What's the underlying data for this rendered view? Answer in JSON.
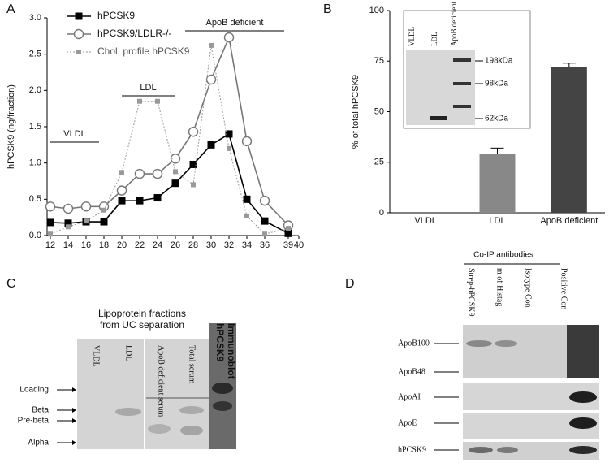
{
  "chart_data": [
    {
      "type": "line",
      "panel": "A",
      "ylabel": "hPCSK9 (ng/fraction)",
      "categories": [
        "12",
        "14",
        "16",
        "18",
        "20",
        "22",
        "24",
        "26",
        "28",
        "30",
        "32",
        "34",
        "36",
        "39",
        "40"
      ],
      "series": [
        {
          "name": "hPCSK9",
          "color": "#000000",
          "marker": "square",
          "values": [
            0.18,
            0.17,
            0.19,
            0.19,
            0.48,
            0.48,
            0.52,
            0.72,
            0.98,
            1.25,
            1.4,
            0.5,
            0.2,
            0.03,
            null
          ]
        },
        {
          "name": "hPCSK9/LDLR-/-",
          "color": "#777777",
          "marker": "circle",
          "values": [
            0.4,
            0.37,
            0.4,
            0.4,
            0.62,
            0.85,
            0.85,
            1.06,
            1.43,
            2.15,
            2.73,
            1.3,
            0.48,
            0.14,
            null
          ]
        },
        {
          "name": "Chol. profile hPCSK9",
          "color": "#999999",
          "marker": "small-square",
          "dashed": true,
          "values": [
            0.02,
            0.12,
            0.2,
            0.35,
            0.87,
            1.85,
            1.85,
            0.88,
            0.7,
            2.62,
            1.2,
            0.27,
            0.02,
            0.1,
            null
          ]
        }
      ],
      "ylim": [
        0,
        3
      ],
      "yticks": [
        {
          "value": 0,
          "label": "0.0"
        },
        0.5,
        {
          "value": 1,
          "label": "1.0"
        },
        1.5,
        {
          "value": 2,
          "label": "2.0"
        },
        2.5,
        {
          "value": 3,
          "label": "3.0"
        }
      ],
      "annotations": [
        "VLDL",
        "LDL",
        "ApoB deficient"
      ]
    },
    {
      "type": "bar",
      "panel": "B",
      "ylabel": "% of total hPCSK9",
      "categories": [
        "VLDL",
        "LDL",
        "ApoB deficient"
      ],
      "values": [
        null,
        29,
        72
      ],
      "errors": [
        null,
        3,
        2
      ],
      "colors": [
        "#888888",
        "#888888",
        "#444444"
      ],
      "ylim": [
        0,
        100
      ],
      "yticks": [
        0,
        25,
        50,
        75,
        100
      ],
      "inset": {
        "lanes": [
          "VLDL",
          "LDL",
          "ApoB deficient"
        ],
        "markers": [
          "198kDa",
          "98kDa",
          "62kDa"
        ]
      }
    }
  ],
  "blots": {
    "C": {
      "panel": "C",
      "header": [
        "Lipoprotein fractions",
        "from UC separation"
      ],
      "lanes": [
        "VLDL",
        "LDL",
        "ApoB deficient serum",
        "Total serum"
      ],
      "immunoblot": [
        "hPCSK9",
        "Immunoblot"
      ],
      "rows": [
        "Loading",
        "Beta",
        "Pre-beta",
        "Alpha"
      ]
    },
    "D": {
      "panel": "D",
      "header": "Co-IP antibodies",
      "lanes": [
        "Strep-hPCSK9",
        "m of Histag",
        "Isotype Con",
        "Positive Con"
      ],
      "rows": [
        "ApoB100",
        "ApoB48",
        "ApoAI",
        "ApoE",
        "hPCSK9"
      ]
    }
  }
}
